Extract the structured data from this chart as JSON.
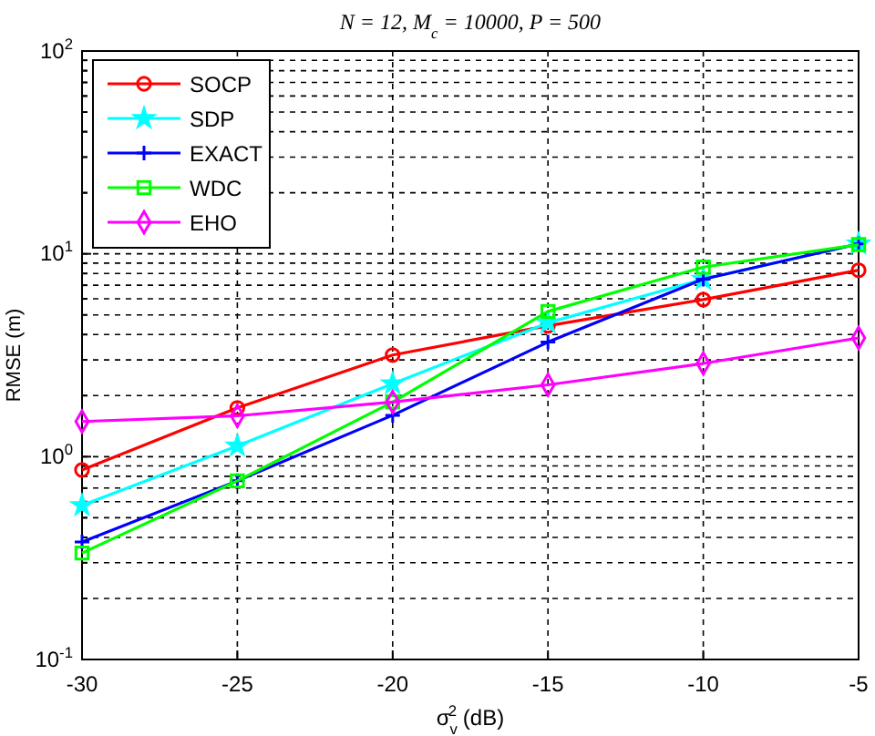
{
  "chart_data": {
    "type": "line",
    "title": "N = 12,  M$_{c}$ = 10000,  P = 500",
    "xlabel": "σ$_{v}$$^{2}$ (dB)",
    "ylabel": "RMSE (m)",
    "x": [
      -30,
      -25,
      -20,
      -15,
      -10,
      -5
    ],
    "series": [
      {
        "name": "SOCP",
        "color": "#ff0000",
        "marker": "circle",
        "values": [
          0.86,
          1.74,
          3.17,
          4.42,
          5.95,
          8.3
        ]
      },
      {
        "name": "SDP",
        "color": "#00ffff",
        "marker": "star",
        "values": [
          0.575,
          1.13,
          2.29,
          4.57,
          7.5,
          11.2
        ]
      },
      {
        "name": "EXACT",
        "color": "#0000ff",
        "marker": "cross",
        "values": [
          0.38,
          0.76,
          1.6,
          3.67,
          7.5,
          11.2
        ]
      },
      {
        "name": "WDC",
        "color": "#00ff00",
        "marker": "square",
        "values": [
          0.335,
          0.76,
          1.86,
          5.2,
          8.6,
          11.1
        ]
      },
      {
        "name": "EHO",
        "color": "#ff00ff",
        "marker": "diamond",
        "values": [
          1.49,
          1.59,
          1.86,
          2.26,
          2.88,
          3.85
        ]
      }
    ],
    "xlim": [
      -30,
      -5
    ],
    "xticks": [
      -30,
      -25,
      -20,
      -15,
      -10,
      -5
    ],
    "ylim": [
      0.1,
      100
    ],
    "log": true,
    "yticks": [
      {
        "value": 0.1,
        "label": "10$^{-1}$"
      },
      {
        "value": 0.2,
        "label": null
      },
      {
        "value": 0.3,
        "label": null
      },
      {
        "value": 0.4,
        "label": null
      },
      {
        "value": 0.5,
        "label": null
      },
      {
        "value": 0.6,
        "label": null
      },
      {
        "value": 0.7,
        "label": null
      },
      {
        "value": 0.8,
        "label": null
      },
      {
        "value": 0.9,
        "label": null
      },
      {
        "value": 1,
        "label": "10$^{0}$"
      },
      {
        "value": 2,
        "label": null
      },
      {
        "value": 3,
        "label": null
      },
      {
        "value": 4,
        "label": null
      },
      {
        "value": 5,
        "label": null
      },
      {
        "value": 6,
        "label": null
      },
      {
        "value": 7,
        "label": null
      },
      {
        "value": 8,
        "label": null
      },
      {
        "value": 9,
        "label": null
      },
      {
        "value": 10,
        "label": "10$^{1}$"
      },
      {
        "value": 20,
        "label": null
      },
      {
        "value": 30,
        "label": null
      },
      {
        "value": 40,
        "label": null
      },
      {
        "value": 50,
        "label": null
      },
      {
        "value": 60,
        "label": null
      },
      {
        "value": 70,
        "label": null
      },
      {
        "value": 80,
        "label": null
      },
      {
        "value": 90,
        "label": null
      },
      {
        "value": 100,
        "label": "10$^{2}$"
      }
    ],
    "grid": true,
    "legend": "top left",
    "line_style": "solid"
  }
}
